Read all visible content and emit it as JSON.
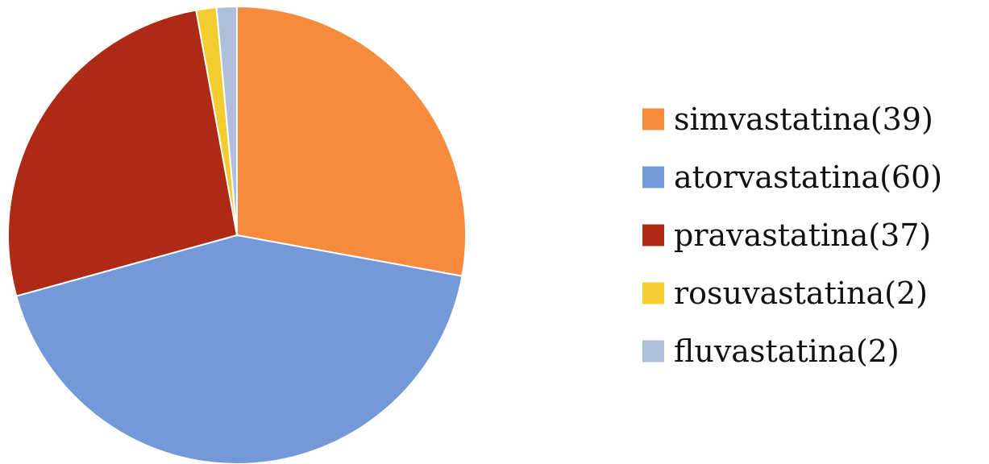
{
  "chart_data": {
    "type": "pie",
    "title": "",
    "legend_position": "right",
    "start_angle": "12 o'clock, clockwise",
    "slices": [
      {
        "label": "simvastatina(39)",
        "value": 39,
        "color": "#f68b3d"
      },
      {
        "label": "atorvastatina(60)",
        "value": 60,
        "color": "#7499d8"
      },
      {
        "label": "pravastatina(37)",
        "value": 37,
        "color": "#ad2a16"
      },
      {
        "label": "rosuvastatina(2)",
        "value": 2,
        "color": "#f2cd2f"
      },
      {
        "label": "fluvastatina(2)",
        "value": 2,
        "color": "#b0bedd"
      }
    ]
  }
}
